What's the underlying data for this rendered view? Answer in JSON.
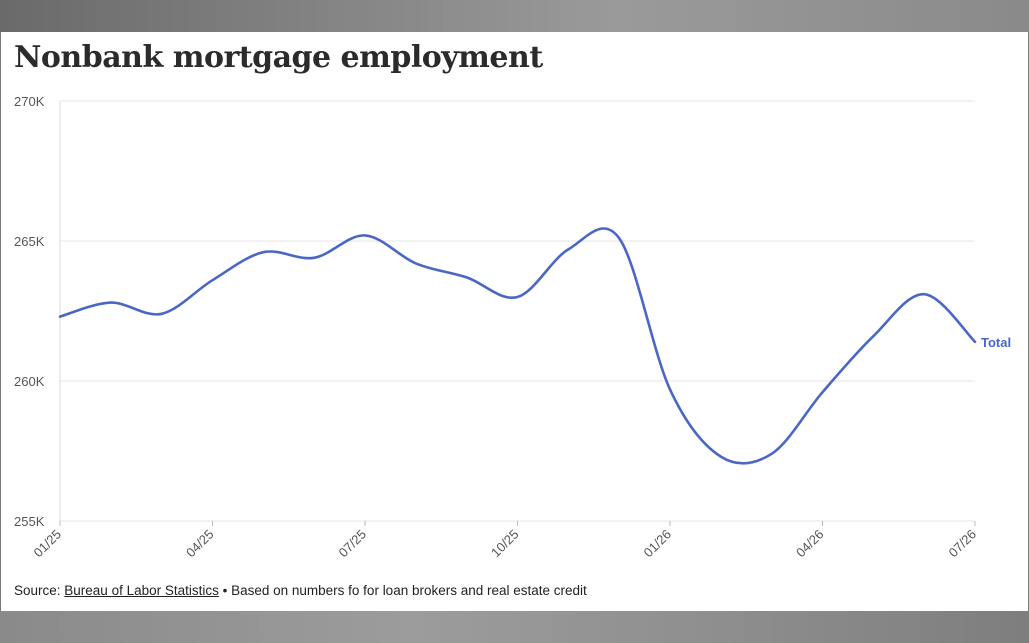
{
  "chart_data": {
    "type": "line",
    "title": "Nonbank mortgage employment",
    "xlabel": "",
    "ylabel": "",
    "ylim": [
      255000,
      270000
    ],
    "yticks": [
      {
        "value": 270000,
        "label": "270K"
      },
      {
        "value": 265000,
        "label": "265K"
      },
      {
        "value": 260000,
        "label": "260K"
      },
      {
        "value": 255000,
        "label": "255K"
      }
    ],
    "xticks": [
      {
        "index": 0,
        "label": "01/25"
      },
      {
        "index": 3,
        "label": "04/25"
      },
      {
        "index": 6,
        "label": "07/25"
      },
      {
        "index": 9,
        "label": "10/25"
      },
      {
        "index": 12,
        "label": "01/26"
      },
      {
        "index": 15,
        "label": "04/26"
      },
      {
        "index": 18,
        "label": "07/26"
      }
    ],
    "x": [
      "01/25",
      "02/25",
      "03/25",
      "04/25",
      "05/25",
      "06/25",
      "07/25",
      "08/25",
      "09/25",
      "10/25",
      "11/25",
      "12/25",
      "01/26",
      "02/26",
      "03/26",
      "04/26",
      "05/26",
      "06/26",
      "07/26"
    ],
    "series": [
      {
        "name": "Total",
        "color": "#4a67c6",
        "values": [
          262300,
          262800,
          262400,
          263600,
          264600,
          264400,
          265200,
          264200,
          263700,
          263000,
          264700,
          265100,
          259700,
          257300,
          257400,
          259600,
          261600,
          263100,
          261400
        ]
      }
    ],
    "grid": true,
    "legend": "end-of-line label"
  },
  "footer": {
    "source_prefix": "Source: ",
    "source_link": "Bureau of Labor Statistics",
    "source_note": " • Based on numbers fo for loan brokers and real estate credit"
  }
}
